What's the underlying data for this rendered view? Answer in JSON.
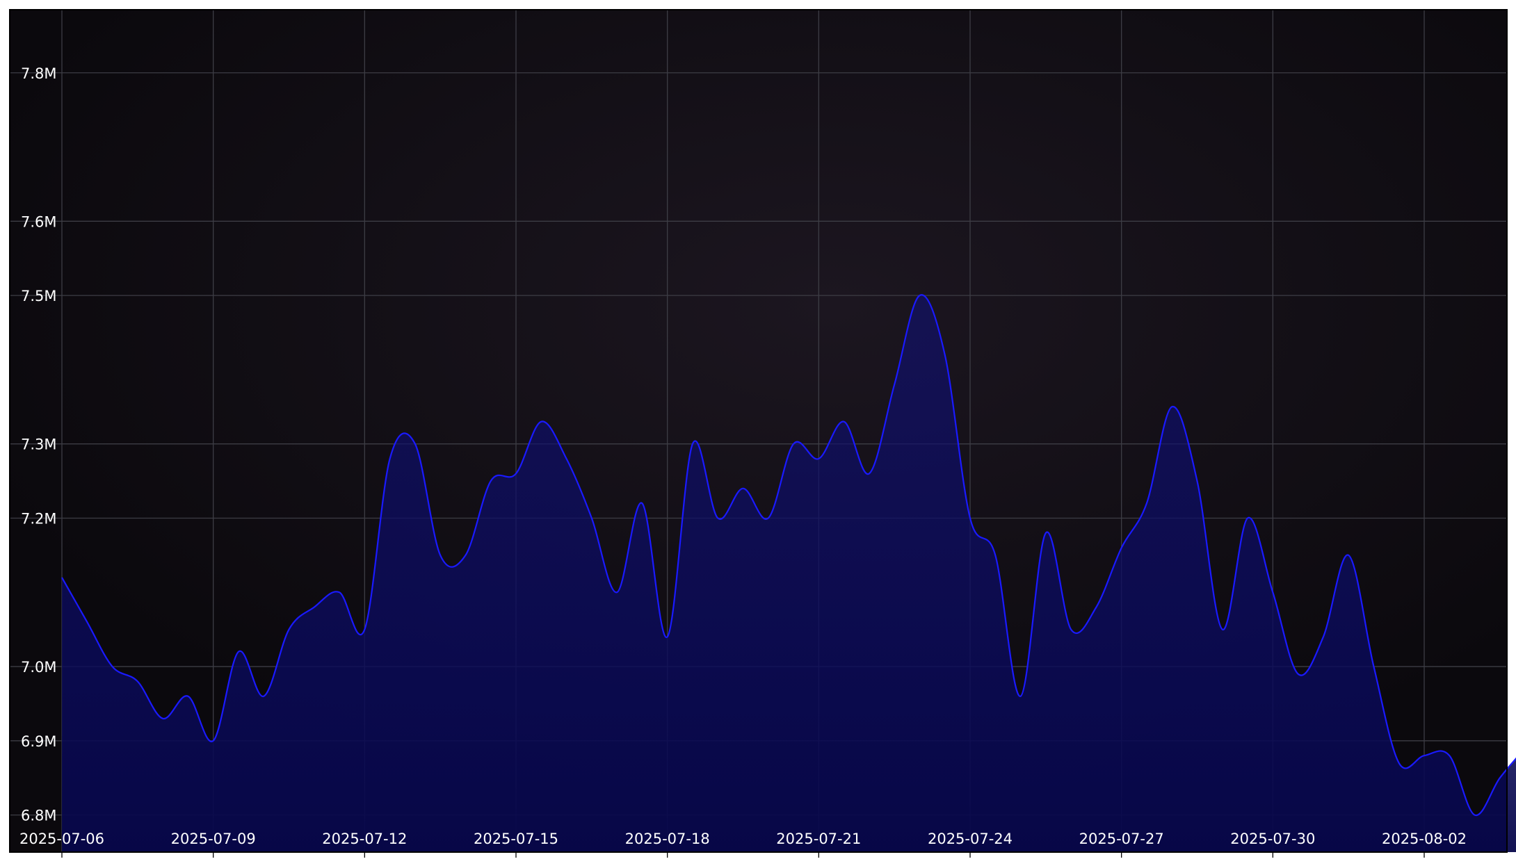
{
  "chart_data": {
    "type": "area",
    "title": "",
    "xlabel": "",
    "ylabel": "",
    "x_tick_labels": [
      "2025-07-06",
      "2025-07-09",
      "2025-07-12",
      "2025-07-15",
      "2025-07-18",
      "2025-07-21",
      "2025-07-24",
      "2025-07-27",
      "2025-07-30",
      "2025-08-02"
    ],
    "y_tick_labels": [
      "6.8M",
      "6.9M",
      "7.0M",
      "7.2M",
      "7.3M",
      "7.5M",
      "7.6M",
      "7.8M"
    ],
    "ylim": [
      6.75,
      7.885
    ],
    "grid": true,
    "legend": "none",
    "colors": {
      "figure_background": "#ffffff",
      "plot_background": "#0e0b10",
      "grid": "#3d3d45",
      "line": "#1a1aff",
      "fill": "#0d0d6e",
      "tick_text": "#ffffff"
    },
    "series": [
      {
        "x": [
          "2025-07-06",
          "2025-07-06 12:00",
          "2025-07-07",
          "2025-07-07 12:00",
          "2025-07-08",
          "2025-07-08 12:00",
          "2025-07-09",
          "2025-07-09 12:00",
          "2025-07-10",
          "2025-07-10 12:00",
          "2025-07-11",
          "2025-07-11 12:00",
          "2025-07-12",
          "2025-07-12 12:00",
          "2025-07-13",
          "2025-07-13 12:00",
          "2025-07-14",
          "2025-07-14 12:00",
          "2025-07-15",
          "2025-07-15 12:00",
          "2025-07-16",
          "2025-07-16 12:00",
          "2025-07-17",
          "2025-07-17 12:00",
          "2025-07-18",
          "2025-07-18 12:00",
          "2025-07-19",
          "2025-07-19 12:00",
          "2025-07-20",
          "2025-07-20 12:00",
          "2025-07-21",
          "2025-07-21 12:00",
          "2025-07-22",
          "2025-07-22 12:00",
          "2025-07-23",
          "2025-07-23 12:00",
          "2025-07-24",
          "2025-07-24 12:00",
          "2025-07-25",
          "2025-07-25 12:00",
          "2025-07-26",
          "2025-07-26 12:00",
          "2025-07-27",
          "2025-07-27 12:00",
          "2025-07-28",
          "2025-07-28 12:00",
          "2025-07-29",
          "2025-07-29 12:00",
          "2025-07-30",
          "2025-07-30 12:00",
          "2025-07-31",
          "2025-07-31 12:00",
          "2025-08-01",
          "2025-08-01 12:00",
          "2025-08-02",
          "2025-08-02 12:00",
          "2025-08-03",
          "2025-08-03 12:00",
          "2025-08-04"
        ],
        "values": [
          7.12,
          7.06,
          7.0,
          6.98,
          6.93,
          6.96,
          6.9,
          7.02,
          6.96,
          7.05,
          7.08,
          7.1,
          7.05,
          7.28,
          7.3,
          7.15,
          7.15,
          7.25,
          7.26,
          7.33,
          7.28,
          7.2,
          7.1,
          7.22,
          7.04,
          7.3,
          7.2,
          7.24,
          7.2,
          7.3,
          7.28,
          7.33,
          7.26,
          7.38,
          7.5,
          7.42,
          7.2,
          7.15,
          6.96,
          7.18,
          7.05,
          7.08,
          7.16,
          7.22,
          7.35,
          7.25,
          7.05,
          7.2,
          7.1,
          6.99,
          7.04,
          7.15,
          7.0,
          6.87,
          6.88,
          6.88,
          6.8,
          6.85,
          6.89
        ]
      }
    ]
  }
}
